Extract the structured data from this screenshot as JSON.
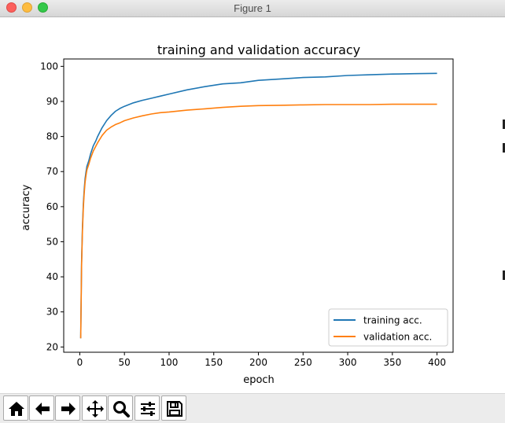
{
  "window": {
    "title": "Figure 1"
  },
  "toolbar": {
    "buttons": [
      {
        "name": "home-icon"
      },
      {
        "name": "back-arrow-icon"
      },
      {
        "name": "forward-arrow-icon"
      },
      {
        "name": "pan-move-icon"
      },
      {
        "name": "zoom-magnifier-icon"
      },
      {
        "name": "subplots-sliders-icon"
      },
      {
        "name": "save-floppy-icon"
      }
    ]
  },
  "chart_data": {
    "type": "line",
    "title": "training and validation accuracy",
    "xlabel": "epoch",
    "ylabel": "accuracy",
    "xlim": [
      -18,
      418
    ],
    "ylim": [
      18.5,
      102.1
    ],
    "xticks": [
      0,
      50,
      100,
      150,
      200,
      250,
      300,
      350,
      400
    ],
    "yticks": [
      20,
      30,
      40,
      50,
      60,
      70,
      80,
      90,
      100
    ],
    "grid": false,
    "legend": "lower right",
    "series": [
      {
        "name": "training acc.",
        "color": "#1f77b4",
        "x": [
          1,
          2,
          3,
          4,
          5,
          6,
          7,
          8,
          10,
          12,
          15,
          18,
          20,
          25,
          30,
          35,
          40,
          45,
          50,
          60,
          70,
          80,
          90,
          100,
          120,
          140,
          160,
          180,
          200,
          225,
          250,
          275,
          300,
          325,
          350,
          375,
          400
        ],
        "y": [
          22.5,
          44,
          54,
          61,
          65,
          68,
          70,
          71.5,
          73,
          75,
          77.3,
          78.8,
          80,
          82.5,
          84.5,
          86,
          87.2,
          88,
          88.6,
          89.6,
          90.3,
          90.9,
          91.5,
          92.1,
          93.3,
          94.2,
          95,
          95.3,
          96,
          96.4,
          96.8,
          97,
          97.4,
          97.6,
          97.8,
          97.9,
          98
        ]
      },
      {
        "name": "validation acc.",
        "color": "#ff7f0e",
        "x": [
          1,
          2,
          3,
          4,
          5,
          6,
          7,
          8,
          10,
          12,
          15,
          18,
          20,
          25,
          30,
          35,
          40,
          45,
          50,
          60,
          70,
          80,
          90,
          100,
          120,
          140,
          160,
          180,
          200,
          225,
          250,
          275,
          300,
          325,
          350,
          375,
          400
        ],
        "y": [
          22.5,
          43,
          53,
          60,
          64,
          67,
          69,
          70.5,
          72,
          73.8,
          75.8,
          77.3,
          78.2,
          80.3,
          81.8,
          82.7,
          83.4,
          83.9,
          84.5,
          85.3,
          85.9,
          86.4,
          86.8,
          87,
          87.5,
          87.9,
          88.3,
          88.6,
          88.8,
          88.9,
          89,
          89.1,
          89.1,
          89.1,
          89.2,
          89.2,
          89.2
        ]
      }
    ]
  }
}
